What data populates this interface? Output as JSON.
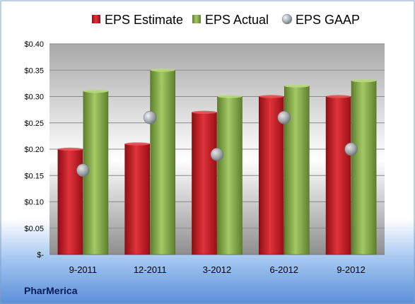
{
  "company": "PharMerica",
  "chart_data": {
    "type": "bar",
    "categories": [
      "9-2011",
      "12-2011",
      "3-2012",
      "6-2012",
      "9-2012"
    ],
    "series": [
      {
        "name": "EPS Estimate",
        "type": "bar",
        "color": "#c81e24",
        "values": [
          0.2,
          0.21,
          0.27,
          0.3,
          0.3
        ]
      },
      {
        "name": "EPS Actual",
        "type": "bar",
        "color": "#8db34a",
        "values": [
          0.31,
          0.35,
          0.3,
          0.32,
          0.33
        ]
      },
      {
        "name": "EPS GAAP",
        "type": "scatter",
        "color": "#9aa0a8",
        "values": [
          0.16,
          0.26,
          0.19,
          0.26,
          0.2
        ]
      }
    ],
    "ylim": [
      0,
      0.4
    ],
    "yticks": [
      {
        "value": 0.4,
        "label": "$0.40"
      },
      {
        "value": 0.35,
        "label": "$0.35"
      },
      {
        "value": 0.3,
        "label": "$0.30"
      },
      {
        "value": 0.25,
        "label": "$0.25"
      },
      {
        "value": 0.2,
        "label": "$0.20"
      },
      {
        "value": 0.15,
        "label": "$0.15"
      },
      {
        "value": 0.1,
        "label": "$0.10"
      },
      {
        "value": 0.05,
        "label": "$0.05"
      },
      {
        "value": 0.0,
        "label": "$-"
      }
    ],
    "grid": true,
    "legend_position": "top"
  }
}
